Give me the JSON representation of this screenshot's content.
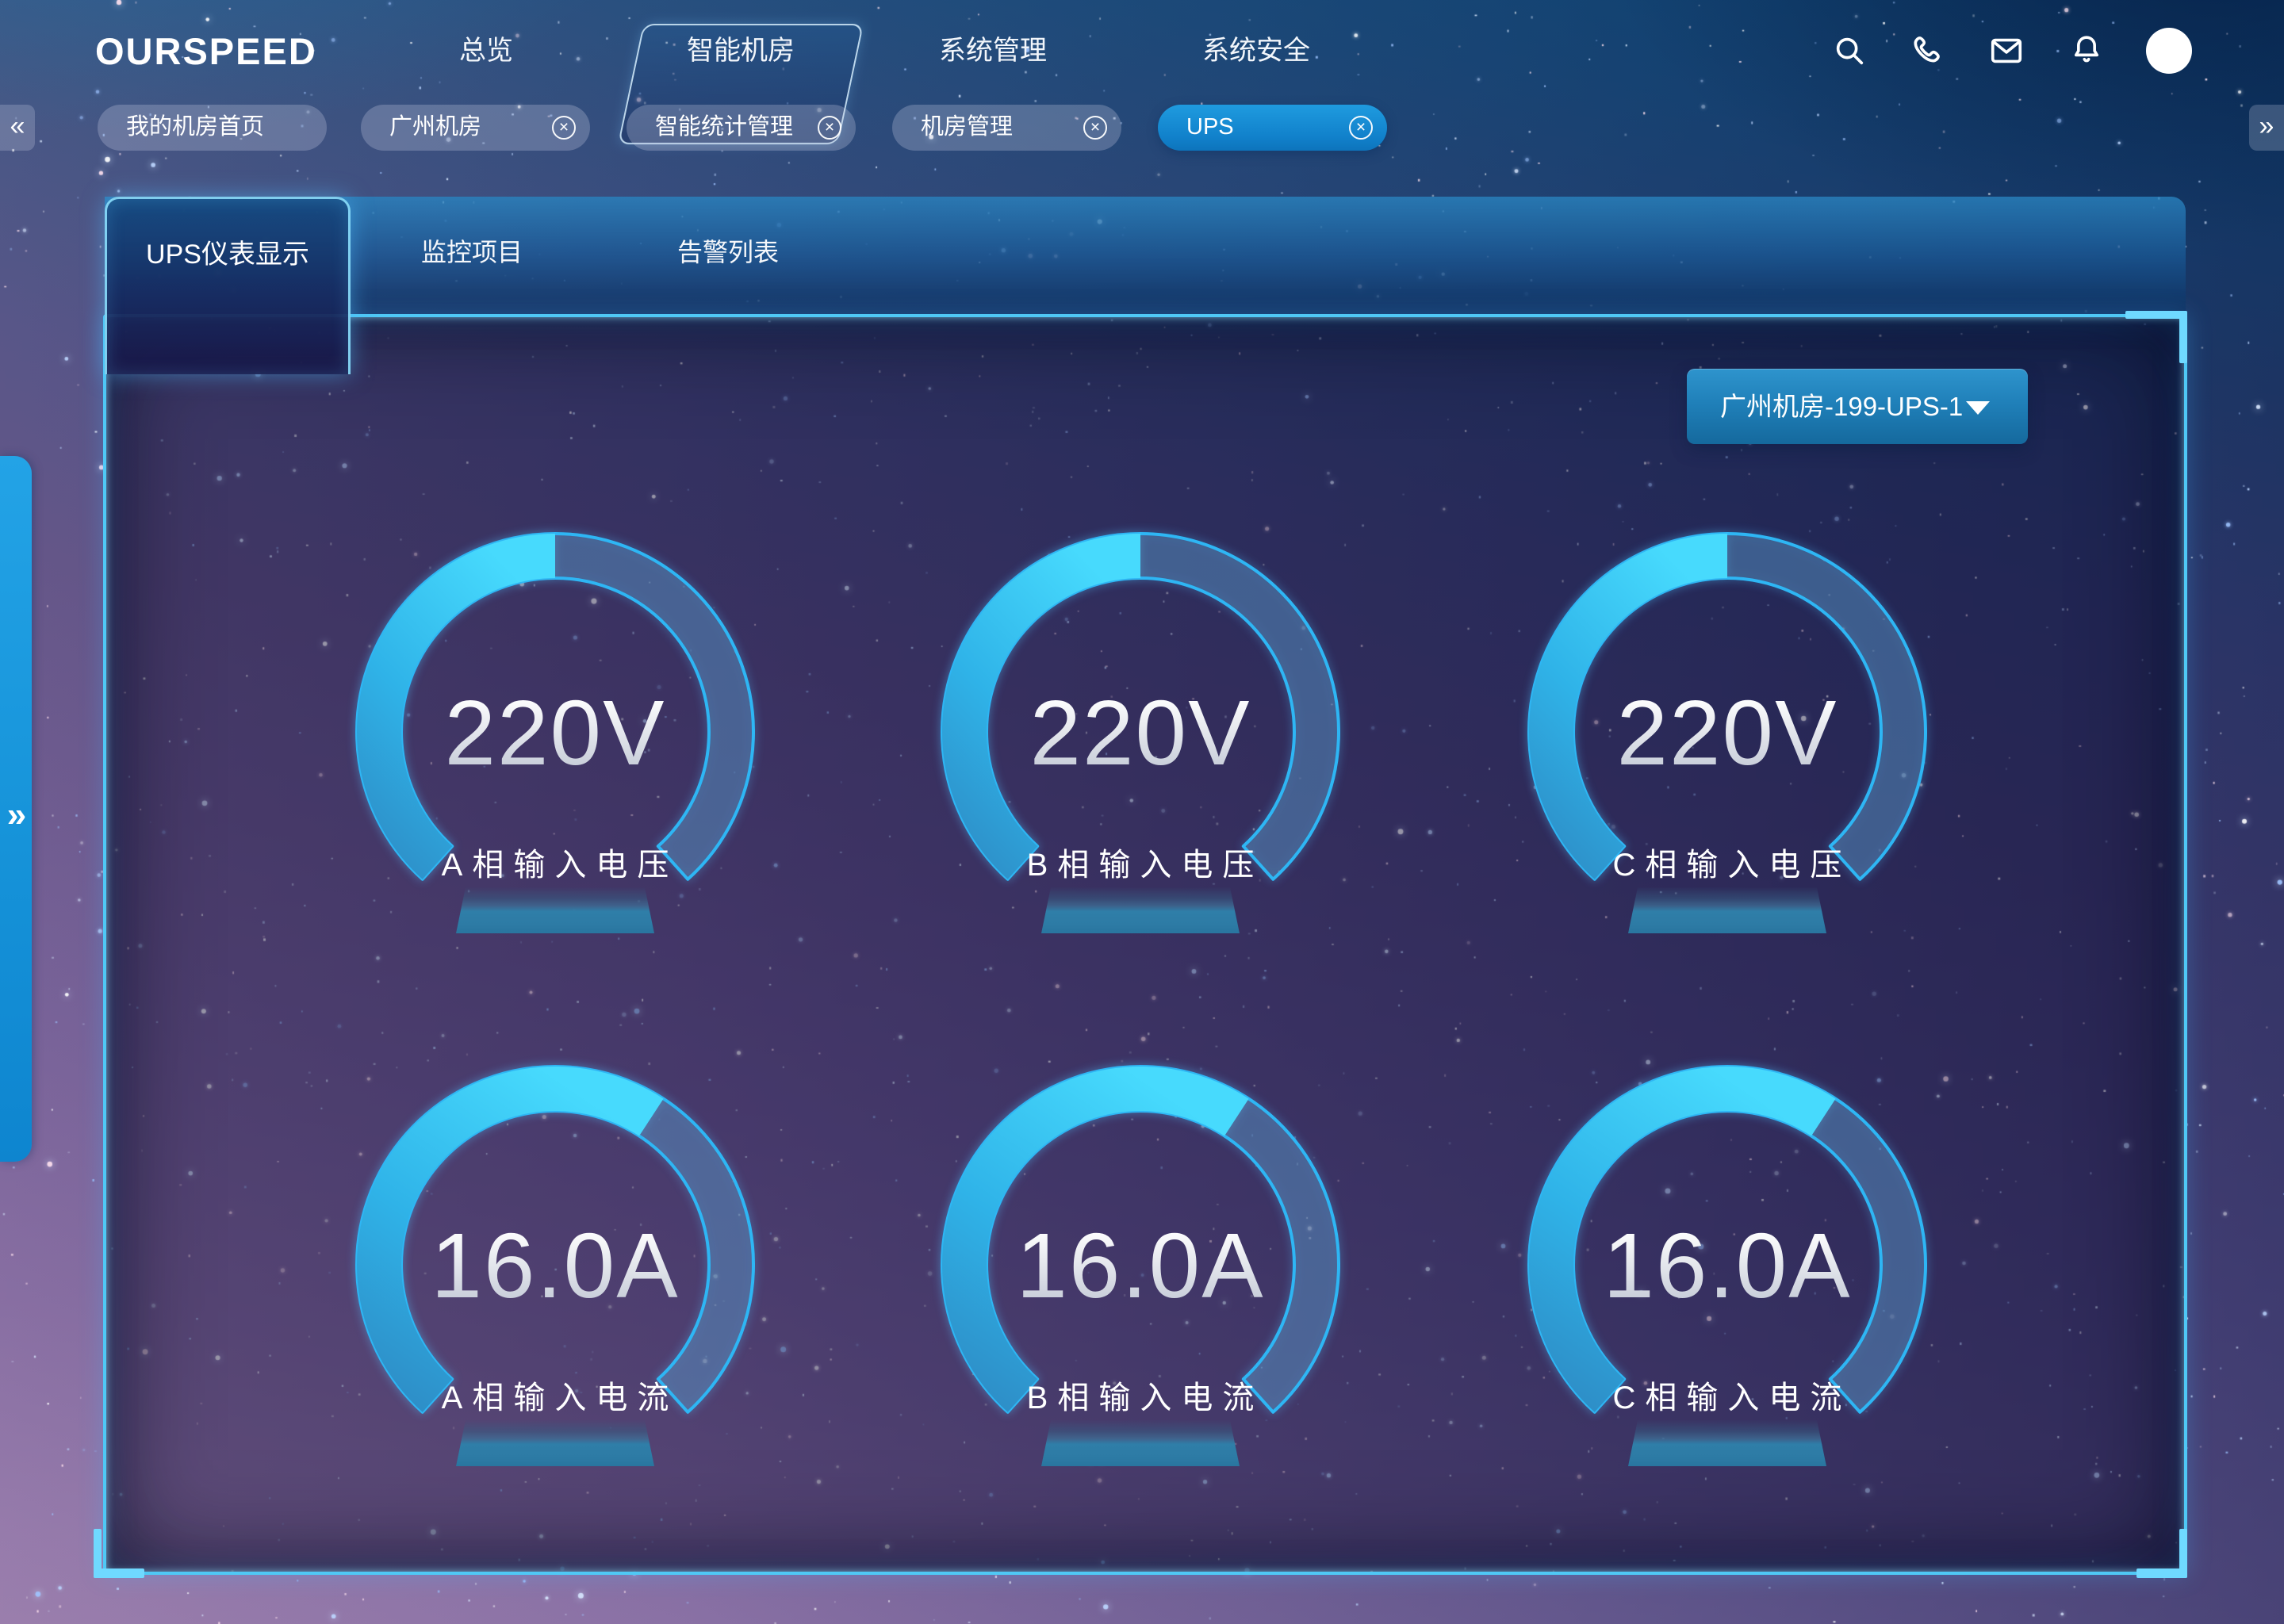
{
  "app": {
    "logo": "OURSPEED"
  },
  "nav": {
    "items": [
      {
        "label": "总览",
        "active": false
      },
      {
        "label": "智能机房",
        "active": true
      },
      {
        "label": "系统管理",
        "active": false
      },
      {
        "label": "系统安全",
        "active": false
      }
    ]
  },
  "tagbar": {
    "collapse_left": "«",
    "collapse_right": "»",
    "close_glyph": "×",
    "tags": [
      {
        "label": "我的机房首页",
        "closable": false,
        "active": false
      },
      {
        "label": "广州机房",
        "closable": true,
        "active": false
      },
      {
        "label": "智能统计管理",
        "closable": true,
        "active": false
      },
      {
        "label": "机房管理",
        "closable": true,
        "active": false
      },
      {
        "label": "UPS",
        "closable": true,
        "active": true
      }
    ]
  },
  "tabs": {
    "items": [
      {
        "label": "UPS仪表显示",
        "active": true
      },
      {
        "label": "监控项目",
        "active": false
      },
      {
        "label": "告警列表",
        "active": false
      }
    ]
  },
  "panel": {
    "device_selector": {
      "value": "广州机房-199-UPS-1"
    }
  },
  "drawer": {
    "chevron": "»"
  },
  "chart_data": {
    "type": "gauge",
    "gauges": [
      {
        "value": "220V",
        "label": "A相输入电压",
        "percent": 50
      },
      {
        "value": "220V",
        "label": "B相输入电压",
        "percent": 50
      },
      {
        "value": "220V",
        "label": "C相输入电压",
        "percent": 50
      },
      {
        "value": "16.0A",
        "label": "A相输入电流",
        "percent": 62
      },
      {
        "value": "16.0A",
        "label": "B相输入电流",
        "percent": 62
      },
      {
        "value": "16.0A",
        "label": "C相输入电流",
        "percent": 62
      }
    ],
    "arc": {
      "start_deg": -138,
      "span_deg": 276
    },
    "colors": {
      "fill_gradient": [
        "#2e86c0",
        "#2fb3e8",
        "#47dafd"
      ],
      "track_fill": "rgba(92,140,184,0.38)",
      "track_stroke": "#2eb6f4",
      "panel_border": "#4fc8f5",
      "active_tag": "#1789d2"
    }
  }
}
